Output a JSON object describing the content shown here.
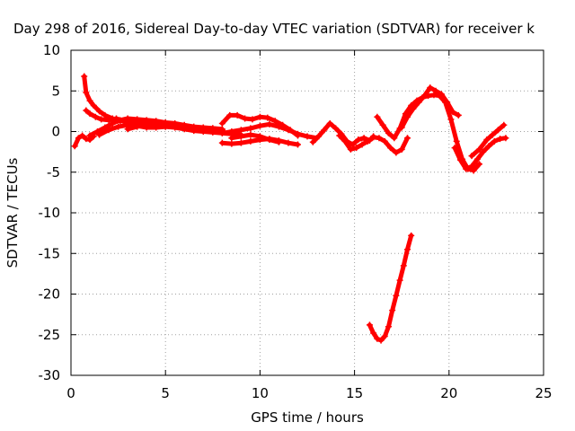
{
  "chart_data": {
    "type": "scatter",
    "title": "Day 298 of 2016, Sidereal Day-to-day VTEC variation (SDTVAR) for receiver k",
    "xlabel": "GPS time / hours",
    "ylabel": "SDTVAR / TECUs",
    "xlim": [
      0,
      25
    ],
    "ylim": [
      -30,
      10
    ],
    "xticks": [
      0,
      5,
      10,
      15,
      20,
      25
    ],
    "yticks": [
      10,
      5,
      0,
      -5,
      -10,
      -15,
      -20,
      -25,
      -30
    ],
    "grid": true,
    "marker": "+",
    "color": "#ff0000",
    "series": [
      {
        "x": [
          0.2,
          0.4,
          0.6,
          0.8,
          1.0,
          1.2
        ],
        "y": [
          -1.8,
          -0.8,
          -0.5,
          -0.9,
          -1.0,
          -0.6
        ]
      },
      {
        "x": [
          0.7,
          0.8,
          1.0,
          1.2,
          1.5,
          1.8,
          2.2,
          2.6,
          3.0,
          3.5,
          4.0
        ],
        "y": [
          6.8,
          4.8,
          3.8,
          3.2,
          2.5,
          2.0,
          1.6,
          1.3,
          1.2,
          1.1,
          1.0
        ]
      },
      {
        "x": [
          0.8,
          1.0,
          1.3,
          1.6,
          2.0,
          2.4,
          2.8,
          3.2
        ],
        "y": [
          2.6,
          2.2,
          1.8,
          1.5,
          1.4,
          1.6,
          1.3,
          0.9
        ]
      },
      {
        "x": [
          1.0,
          1.4,
          1.8,
          2.2,
          2.6,
          3.0,
          3.5,
          4.0,
          4.5,
          5.0,
          5.5,
          6.0,
          6.5,
          7.0,
          7.5,
          8.0
        ],
        "y": [
          -0.5,
          0.0,
          0.5,
          1.0,
          1.4,
          1.6,
          1.5,
          1.4,
          1.3,
          1.1,
          1.0,
          0.8,
          0.6,
          0.5,
          0.4,
          0.2
        ]
      },
      {
        "x": [
          1.5,
          2.0,
          2.5,
          3.0,
          3.5,
          4.0,
          4.5,
          5.0,
          5.5,
          6.0,
          6.5,
          7.0,
          7.5,
          8.0,
          8.5,
          9.0
        ],
        "y": [
          -0.4,
          0.2,
          0.6,
          0.8,
          0.7,
          0.5,
          0.5,
          0.6,
          0.5,
          0.3,
          0.1,
          0.0,
          -0.1,
          -0.2,
          -0.3,
          -0.4
        ]
      },
      {
        "x": [
          3.0,
          3.5,
          4.0,
          4.5,
          5.0,
          5.5,
          6.0,
          6.5,
          7.0,
          7.5,
          8.0
        ],
        "y": [
          0.3,
          0.6,
          0.9,
          1.0,
          0.9,
          0.7,
          0.6,
          0.5,
          0.4,
          0.4,
          0.3
        ]
      },
      {
        "x": [
          8.0,
          8.4,
          8.8,
          9.2,
          9.6,
          10.0,
          10.4,
          10.8,
          11.2,
          11.6,
          12.0
        ],
        "y": [
          1.0,
          2.0,
          2.0,
          1.6,
          1.5,
          1.8,
          1.7,
          1.3,
          0.8,
          0.2,
          -0.5
        ]
      },
      {
        "x": [
          8.0,
          8.5,
          9.0,
          9.5,
          10.0,
          10.5,
          11.0,
          11.5,
          12.0,
          12.5,
          13.0
        ],
        "y": [
          -0.2,
          0.0,
          0.2,
          0.4,
          0.7,
          0.9,
          0.6,
          0.2,
          -0.3,
          -0.6,
          -0.8
        ]
      },
      {
        "x": [
          8.0,
          8.5,
          9.0,
          9.5,
          10.0,
          10.5,
          11.0,
          11.5,
          12.0
        ],
        "y": [
          -1.4,
          -1.5,
          -1.4,
          -1.2,
          -1.0,
          -0.9,
          -1.1,
          -1.4,
          -1.6
        ]
      },
      {
        "x": [
          8.5,
          9.0,
          9.5,
          10.0,
          10.5,
          11.0
        ],
        "y": [
          -0.8,
          -0.6,
          -0.4,
          -0.6,
          -1.0,
          -1.3
        ]
      },
      {
        "x": [
          12.8,
          13.1,
          13.4,
          13.7,
          14.0,
          14.3,
          14.6,
          14.9,
          15.2,
          15.5,
          15.8,
          16.0
        ],
        "y": [
          -1.3,
          -0.6,
          0.2,
          1.0,
          0.4,
          -0.3,
          -1.2,
          -1.6,
          -1.0,
          -0.8,
          -1.1,
          -0.6
        ]
      },
      {
        "x": [
          14.2,
          14.5,
          14.8,
          15.1,
          15.4,
          15.7,
          16.0,
          16.3,
          16.6,
          16.9,
          17.2,
          17.5,
          17.8
        ],
        "y": [
          -0.5,
          -1.2,
          -2.2,
          -2.0,
          -1.6,
          -1.2,
          -0.7,
          -0.8,
          -1.2,
          -2.0,
          -2.6,
          -2.2,
          -0.8
        ]
      },
      {
        "x": [
          16.2,
          16.5,
          16.8,
          17.1,
          17.4,
          17.7,
          18.0,
          18.3,
          18.6,
          18.9,
          19.2,
          19.5,
          19.8,
          20.1,
          20.4,
          20.7,
          21.0,
          21.3,
          21.6
        ],
        "y": [
          1.8,
          0.8,
          -0.2,
          -0.8,
          0.4,
          2.2,
          3.2,
          3.8,
          4.2,
          4.4,
          4.5,
          4.4,
          3.6,
          1.5,
          -1.2,
          -3.4,
          -4.6,
          -4.8,
          -4.0
        ]
      },
      {
        "x": [
          17.5,
          17.8,
          18.1,
          18.4,
          18.7,
          19.0,
          19.3,
          19.6,
          19.9,
          20.2,
          20.5
        ],
        "y": [
          0.5,
          1.8,
          2.8,
          3.6,
          4.4,
          5.4,
          5.0,
          4.6,
          3.6,
          2.4,
          2.0
        ]
      },
      {
        "x": [
          20.3,
          20.6,
          20.9,
          21.2,
          21.5,
          21.8,
          22.1,
          22.4,
          22.7,
          23.0
        ],
        "y": [
          -2.0,
          -3.5,
          -4.6,
          -4.3,
          -3.4,
          -2.5,
          -1.8,
          -1.2,
          -0.9,
          -0.8
        ]
      },
      {
        "x": [
          21.2,
          21.6,
          22.0,
          22.3,
          22.6,
          22.9
        ],
        "y": [
          -3.0,
          -2.2,
          -1.0,
          -0.4,
          0.2,
          0.8
        ]
      },
      {
        "x": [
          15.8,
          16.0,
          16.2,
          16.4,
          16.6,
          16.8,
          17.0,
          17.2,
          17.4,
          17.6,
          17.8,
          18.0
        ],
        "y": [
          -23.8,
          -24.8,
          -25.5,
          -25.7,
          -25.2,
          -24.0,
          -22.0,
          -20.2,
          -18.3,
          -16.5,
          -14.5,
          -12.8
        ]
      }
    ]
  }
}
